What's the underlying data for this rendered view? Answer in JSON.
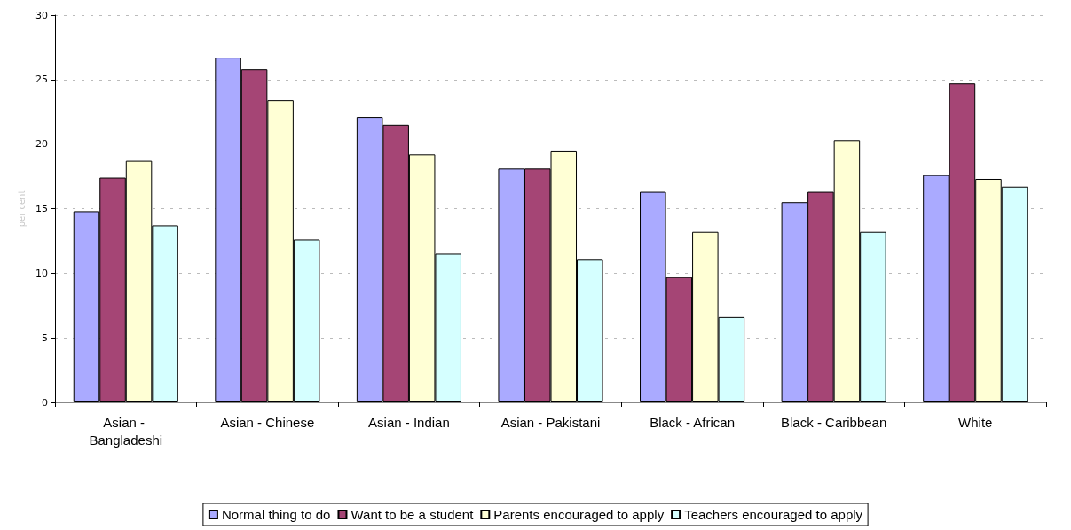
{
  "chart_data": {
    "type": "bar",
    "ylabel": "per cent",
    "categories": [
      "Asian - Bangladeshi",
      "Asian - Chinese",
      "Asian - Indian",
      "Asian - Pakistani",
      "Black - African",
      "Black - Caribbean",
      "White"
    ],
    "series": [
      {
        "name": "Normal thing to do",
        "color": "#aaaaff",
        "values": [
          14.8,
          26.7,
          22.1,
          18.1,
          16.3,
          15.5,
          17.6
        ]
      },
      {
        "name": "Want to be a student",
        "color": "#a54575",
        "values": [
          17.4,
          25.8,
          21.5,
          18.1,
          9.7,
          16.3,
          24.7
        ]
      },
      {
        "name": "Parents encouraged to apply",
        "color": "#ffffd5",
        "values": [
          18.7,
          23.4,
          19.2,
          19.5,
          13.2,
          20.3,
          17.3
        ]
      },
      {
        "name": "Teachers encouraged to apply",
        "color": "#d5ffff",
        "values": [
          13.7,
          12.6,
          11.5,
          11.1,
          6.6,
          13.2,
          16.7
        ]
      }
    ],
    "ylim": [
      0,
      30
    ],
    "yticks": [
      0,
      5,
      10,
      15,
      20,
      25,
      30
    ],
    "grid": "y",
    "legend": "bottom"
  }
}
